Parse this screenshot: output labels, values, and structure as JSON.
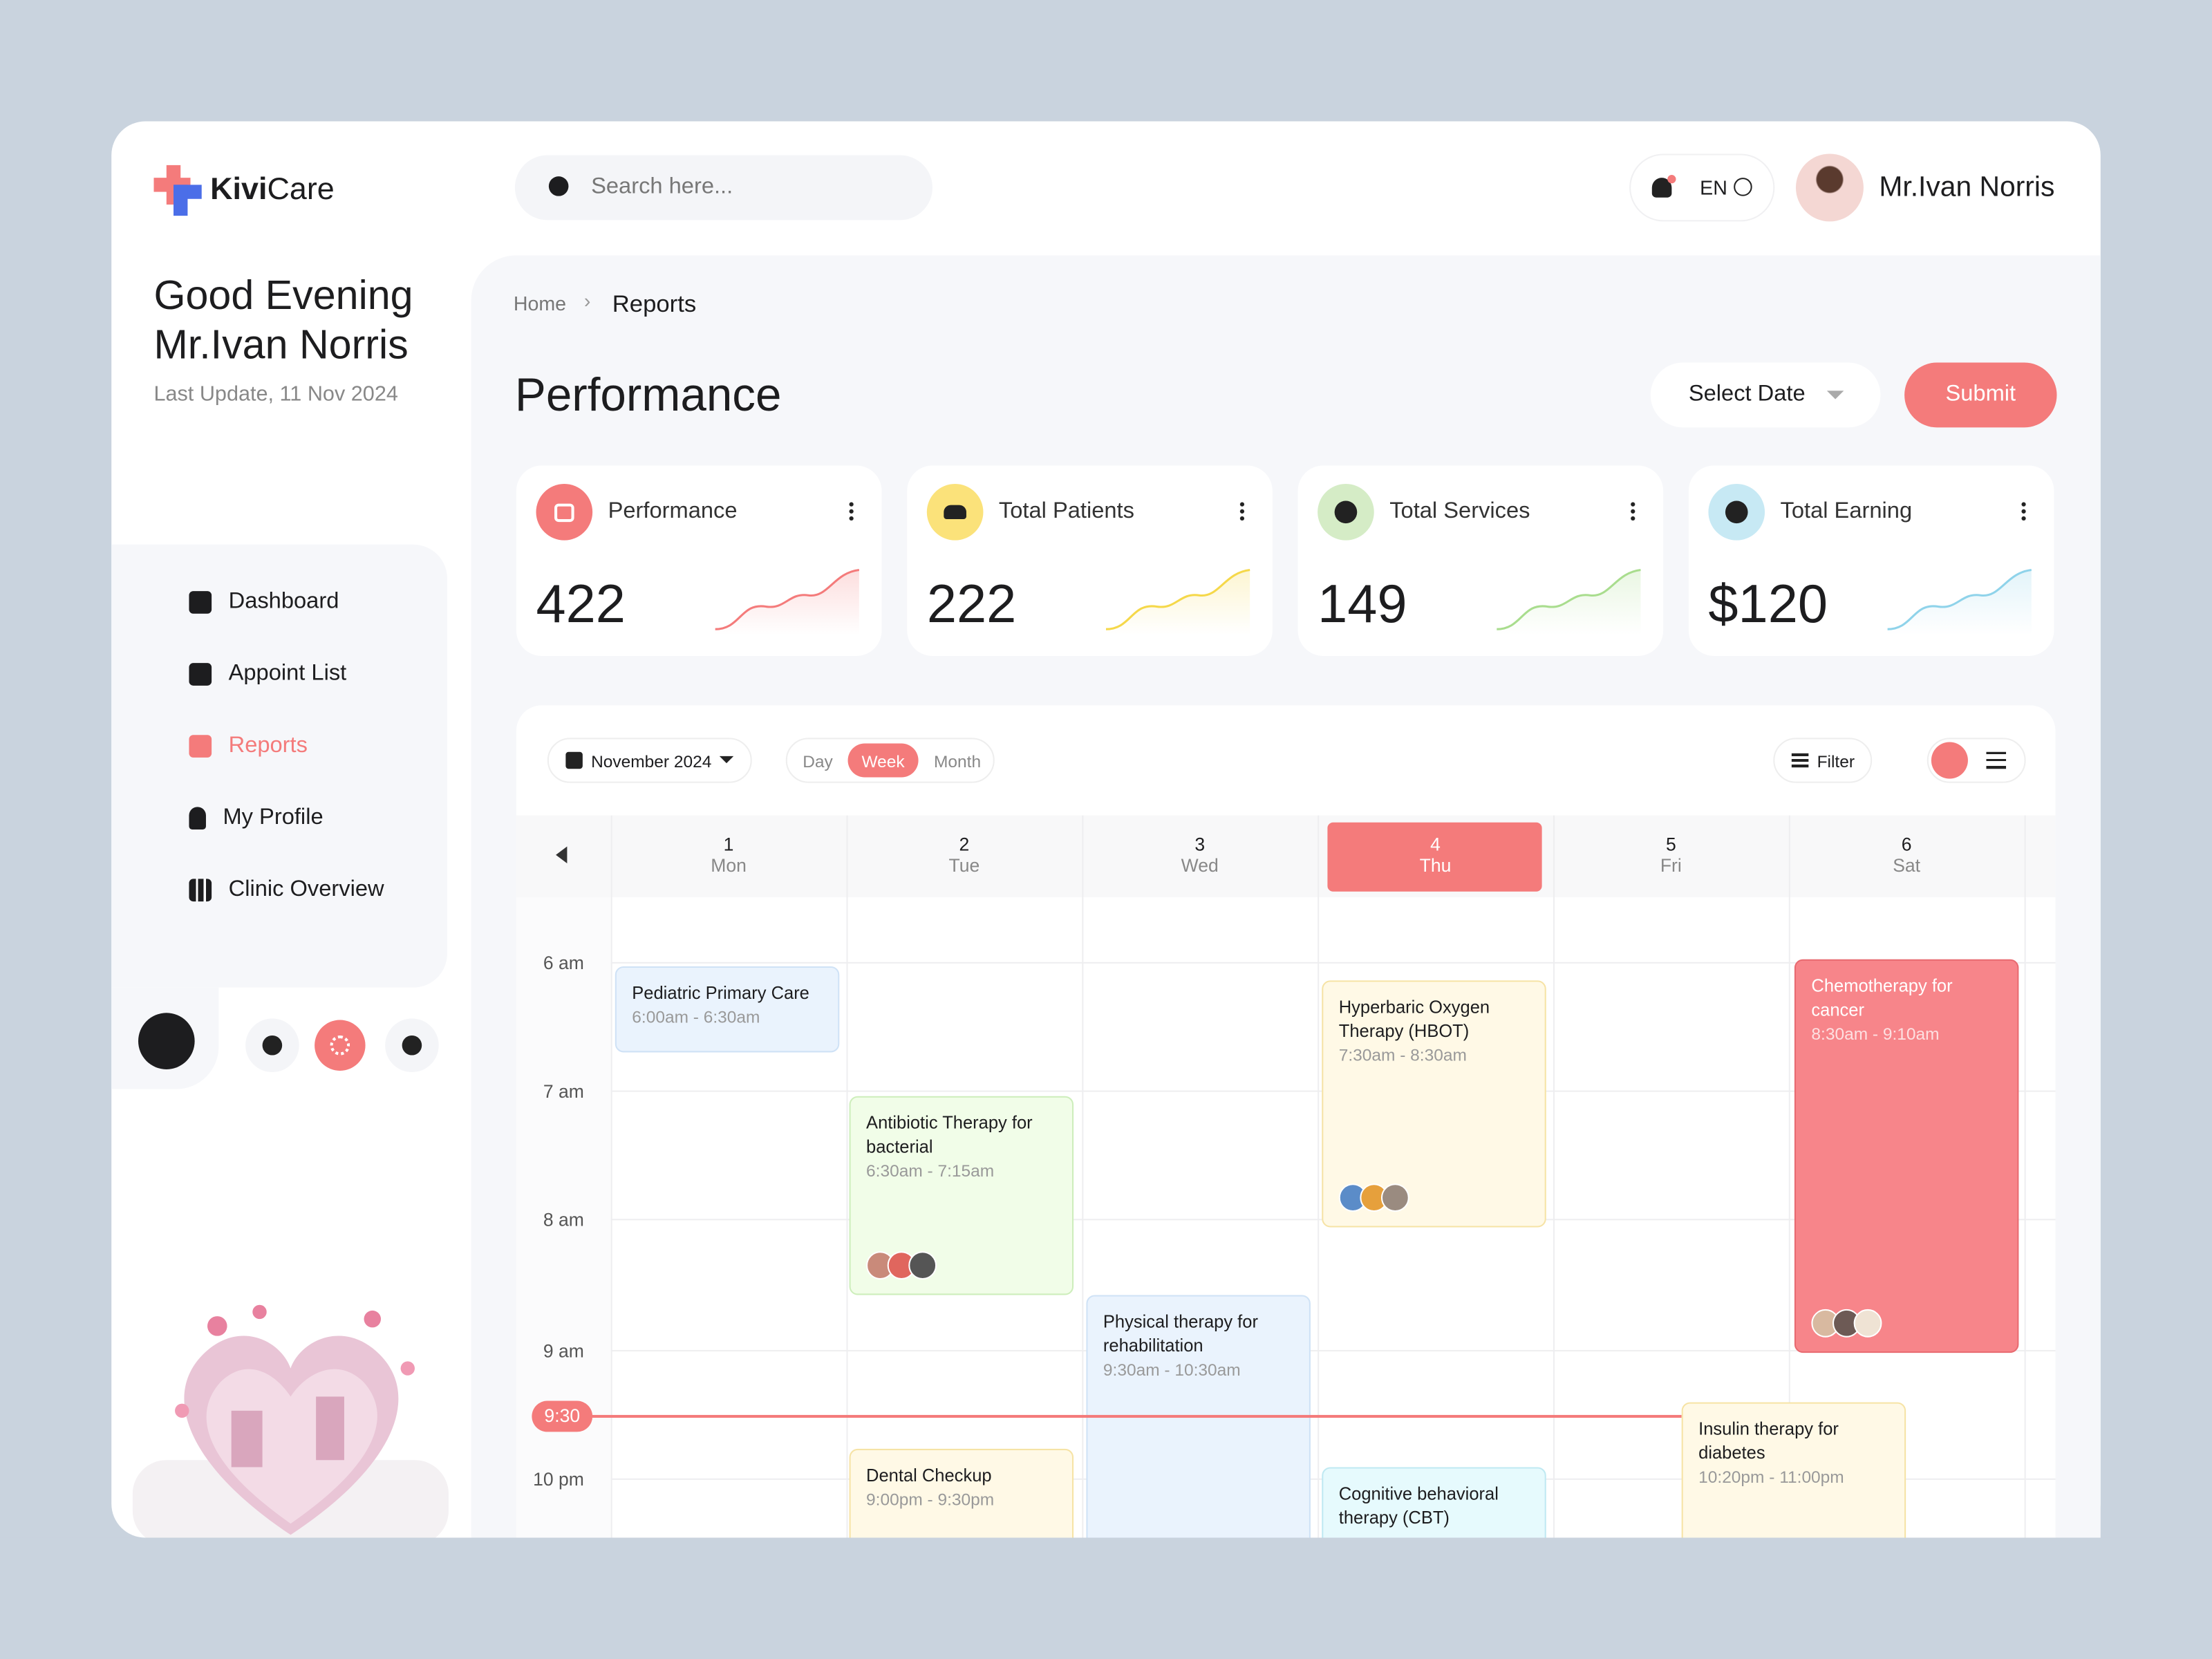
{
  "header": {
    "brand_bold": "Kivi",
    "brand_light": "Care",
    "search_placeholder": "Search here...",
    "language": "EN",
    "user_name": "Mr.Ivan Norris"
  },
  "sidebar": {
    "greeting": "Good Evening",
    "name": "Mr.Ivan Norris",
    "last_update": "Last Update, 11 Nov 2024",
    "nav": [
      "Dashboard",
      "Appoint List",
      "Reports",
      "My Profile",
      "Clinic Overview"
    ]
  },
  "breadcrumb": [
    "Home",
    "Reports"
  ],
  "page": {
    "title": "Performance",
    "select_date": "Select Date",
    "submit": "Submit"
  },
  "stats": [
    {
      "label": "Performance",
      "value": "422"
    },
    {
      "label": "Total Patients",
      "value": "222"
    },
    {
      "label": "Total Services",
      "value": "149"
    },
    {
      "label": "Total Earning",
      "value": "$120"
    }
  ],
  "calendar": {
    "month": "November 2024",
    "views": [
      "Day",
      "Week",
      "Month"
    ],
    "filter": "Filter",
    "days": [
      {
        "date": "1",
        "weekday": "Mon"
      },
      {
        "date": "2",
        "weekday": "Tue"
      },
      {
        "date": "3",
        "weekday": "Wed"
      },
      {
        "date": "4",
        "weekday": "Thu"
      },
      {
        "date": "5",
        "weekday": "Fri"
      },
      {
        "date": "6",
        "weekday": "Sat"
      }
    ],
    "times": [
      "6 am",
      "7 am",
      "8 am",
      "9 am",
      "10 pm"
    ],
    "current_time": "9:30",
    "events": [
      {
        "title": "Pediatric Primary Care",
        "time": "6:00am - 6:30am"
      },
      {
        "title": "Antibiotic Therapy for bacterial",
        "time": "6:30am - 7:15am"
      },
      {
        "title": "Physical therapy for rehabilitation",
        "time": "9:30am - 10:30am"
      },
      {
        "title": "Hyperbaric Oxygen Therapy (HBOT)",
        "time": "7:30am - 8:30am"
      },
      {
        "title": "Chemotherapy for cancer",
        "time": "8:30am - 9:10am"
      },
      {
        "title": "Dental Checkup",
        "time": "9:00pm - 9:30pm"
      },
      {
        "title": "Cognitive behavioral therapy (CBT)"
      },
      {
        "title": "Insulin therapy for diabetes",
        "time": "10:20pm - 11:00pm"
      }
    ]
  }
}
